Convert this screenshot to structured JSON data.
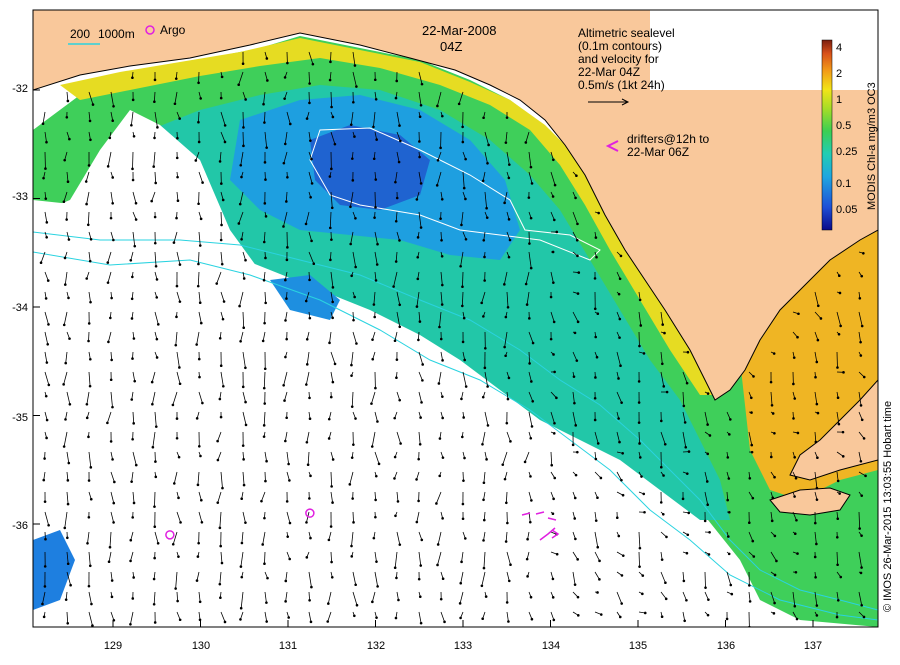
{
  "header": {
    "date": "22-Mar-2008",
    "time": "04Z"
  },
  "legend": {
    "depth_label_1": "200",
    "depth_label_2": "1000m",
    "argo_label": "Argo",
    "altimetry_lines": [
      "Altimetric sealevel",
      "(0.1m contours)",
      "and velocity for",
      "22-Mar 04Z",
      "0.5m/s (1kt 24h)"
    ],
    "drifter_lines": [
      "drifters@12h to",
      "22-Mar 06Z"
    ]
  },
  "colorbar": {
    "title": "MODIS Chl-a mg/m3 OC3",
    "ticks": [
      "4",
      "2",
      "1",
      "0.5",
      "0.25",
      "0.1",
      "0.05"
    ]
  },
  "credit": "© IMOS 26-Mar-2015 13:03:55 Hobart time",
  "axes": {
    "y_ticks": [
      "-32",
      "-33",
      "-34",
      "-35",
      "-36"
    ],
    "x_ticks": [
      "129",
      "130",
      "131",
      "132",
      "133",
      "134",
      "135",
      "136",
      "137"
    ]
  },
  "colors": {
    "land": "#f9c89b",
    "contour_shelf": "#2ad3e0",
    "argo_marker": "#e020e0",
    "drifter": "#e020e0",
    "arrow": "#000000"
  },
  "argo_floats": [
    {
      "lon": 129.65,
      "lat": -36.1
    },
    {
      "lon": 131.25,
      "lat": -35.9
    }
  ]
}
